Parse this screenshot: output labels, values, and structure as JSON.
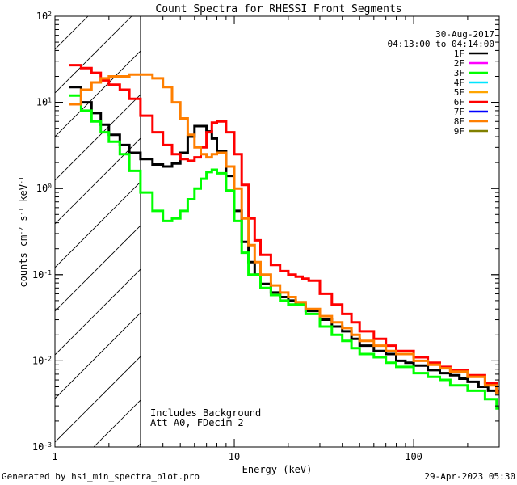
{
  "chart_data": {
    "type": "line",
    "title": "Count Spectra for RHESSI Front Segments",
    "xlabel": "Energy (keV)",
    "ylabel_parts": [
      "counts cm",
      "-2",
      " s",
      "-1",
      " keV",
      "-1"
    ],
    "xscale": "log",
    "yscale": "log",
    "xlim": [
      1,
      300
    ],
    "ylim": [
      0.001,
      100
    ],
    "x_tick_labels": [
      {
        "value": 10,
        "label": "10"
      },
      {
        "value": 100,
        "label": "100"
      }
    ],
    "y_tick_labels": [
      {
        "value": 100,
        "base": "10",
        "exp": "2"
      },
      {
        "value": 10,
        "base": "10",
        "exp": "1"
      },
      {
        "value": 1,
        "base": "10",
        "exp": "0"
      },
      {
        "value": 0.1,
        "base": "10",
        "exp": "-1"
      },
      {
        "value": 0.01,
        "base": "10",
        "exp": "-2"
      },
      {
        "value": 0.001,
        "base": "10",
        "exp": "-3"
      }
    ],
    "date": "30-Aug-2017",
    "time_range": "04:13:00 to 04:14:00",
    "shaded_region": {
      "x_min": 1,
      "x_max": 3,
      "style": "hatched"
    },
    "annotations": [
      "Includes Background",
      "Att A0, FDecim 2"
    ],
    "legend": [
      {
        "label": "1F",
        "color": "#000000"
      },
      {
        "label": "2F",
        "color": "#ff00ff"
      },
      {
        "label": "3F",
        "color": "#00ff00"
      },
      {
        "label": "4F",
        "color": "#00e5ff"
      },
      {
        "label": "5F",
        "color": "#ffa500"
      },
      {
        "label": "6F",
        "color": "#ff0000"
      },
      {
        "label": "7F",
        "color": "#0000ff"
      },
      {
        "label": "8F",
        "color": "#ff7f00"
      },
      {
        "label": "9F",
        "color": "#808000"
      }
    ],
    "series": [
      {
        "name": "1F",
        "color": "#000000",
        "points": [
          [
            1.2,
            15
          ],
          [
            1.4,
            10
          ],
          [
            1.6,
            7.5
          ],
          [
            1.8,
            5.5
          ],
          [
            2,
            4.2
          ],
          [
            2.3,
            3.2
          ],
          [
            2.6,
            2.6
          ],
          [
            3,
            2.2
          ],
          [
            3.5,
            1.9
          ],
          [
            4,
            1.8
          ],
          [
            4.5,
            1.95
          ],
          [
            5,
            2.6
          ],
          [
            5.5,
            4
          ],
          [
            6,
            5.3
          ],
          [
            6.5,
            5.3
          ],
          [
            7,
            4.6
          ],
          [
            7.5,
            3.8
          ],
          [
            8,
            2.7
          ],
          [
            9,
            1.4
          ],
          [
            10,
            0.55
          ],
          [
            11,
            0.24
          ],
          [
            12,
            0.14
          ],
          [
            13,
            0.1
          ],
          [
            14,
            0.078
          ],
          [
            16,
            0.062
          ],
          [
            18,
            0.055
          ],
          [
            20,
            0.05
          ],
          [
            22,
            0.045
          ],
          [
            25,
            0.038
          ],
          [
            30,
            0.03
          ],
          [
            35,
            0.025
          ],
          [
            40,
            0.022
          ],
          [
            45,
            0.018
          ],
          [
            50,
            0.015
          ],
          [
            60,
            0.013
          ],
          [
            70,
            0.012
          ],
          [
            80,
            0.01
          ],
          [
            90,
            0.0095
          ],
          [
            100,
            0.0088
          ],
          [
            120,
            0.0078
          ],
          [
            140,
            0.0072
          ],
          [
            160,
            0.0068
          ],
          [
            180,
            0.0062
          ],
          [
            200,
            0.0057
          ],
          [
            230,
            0.005
          ],
          [
            260,
            0.0045
          ],
          [
            290,
            0.0042
          ]
        ]
      },
      {
        "name": "3F",
        "color": "#00ff00",
        "points": [
          [
            1.2,
            12
          ],
          [
            1.4,
            8
          ],
          [
            1.6,
            6
          ],
          [
            1.8,
            4.5
          ],
          [
            2,
            3.5
          ],
          [
            2.3,
            2.5
          ],
          [
            2.6,
            1.6
          ],
          [
            3,
            0.9
          ],
          [
            3.5,
            0.55
          ],
          [
            4,
            0.42
          ],
          [
            4.5,
            0.45
          ],
          [
            5,
            0.55
          ],
          [
            5.5,
            0.75
          ],
          [
            6,
            1
          ],
          [
            6.5,
            1.3
          ],
          [
            7,
            1.55
          ],
          [
            7.5,
            1.65
          ],
          [
            8,
            1.5
          ],
          [
            9,
            0.95
          ],
          [
            10,
            0.42
          ],
          [
            11,
            0.18
          ],
          [
            12,
            0.1
          ],
          [
            14,
            0.07
          ],
          [
            16,
            0.058
          ],
          [
            18,
            0.05
          ],
          [
            20,
            0.045
          ],
          [
            25,
            0.035
          ],
          [
            30,
            0.025
          ],
          [
            35,
            0.02
          ],
          [
            40,
            0.017
          ],
          [
            45,
            0.014
          ],
          [
            50,
            0.012
          ],
          [
            60,
            0.011
          ],
          [
            70,
            0.0095
          ],
          [
            80,
            0.0085
          ],
          [
            100,
            0.0072
          ],
          [
            120,
            0.0065
          ],
          [
            140,
            0.006
          ],
          [
            160,
            0.0052
          ],
          [
            200,
            0.0045
          ],
          [
            250,
            0.0036
          ],
          [
            290,
            0.0028
          ]
        ]
      },
      {
        "name": "6F",
        "color": "#ff0000",
        "points": [
          [
            1.2,
            27
          ],
          [
            1.4,
            25
          ],
          [
            1.6,
            22
          ],
          [
            1.8,
            18
          ],
          [
            2,
            16
          ],
          [
            2.3,
            14
          ],
          [
            2.6,
            11
          ],
          [
            3,
            7
          ],
          [
            3.5,
            4.5
          ],
          [
            4,
            3.2
          ],
          [
            4.5,
            2.5
          ],
          [
            5,
            2.2
          ],
          [
            5.5,
            2.1
          ],
          [
            6,
            2.3
          ],
          [
            6.5,
            3
          ],
          [
            7,
            4.5
          ],
          [
            7.5,
            5.8
          ],
          [
            8,
            6
          ],
          [
            9,
            4.5
          ],
          [
            10,
            2.5
          ],
          [
            11,
            1.1
          ],
          [
            12,
            0.45
          ],
          [
            13,
            0.25
          ],
          [
            14,
            0.17
          ],
          [
            16,
            0.13
          ],
          [
            18,
            0.11
          ],
          [
            20,
            0.1
          ],
          [
            22,
            0.095
          ],
          [
            24,
            0.09
          ],
          [
            26,
            0.085
          ],
          [
            30,
            0.06
          ],
          [
            35,
            0.045
          ],
          [
            40,
            0.035
          ],
          [
            45,
            0.028
          ],
          [
            50,
            0.022
          ],
          [
            60,
            0.018
          ],
          [
            70,
            0.015
          ],
          [
            80,
            0.013
          ],
          [
            100,
            0.011
          ],
          [
            120,
            0.0095
          ],
          [
            140,
            0.0085
          ],
          [
            160,
            0.0078
          ],
          [
            200,
            0.0068
          ],
          [
            250,
            0.0055
          ],
          [
            290,
            0.0045
          ]
        ]
      },
      {
        "name": "8F",
        "color": "#ff7f00",
        "points": [
          [
            1.2,
            9.5
          ],
          [
            1.4,
            14
          ],
          [
            1.6,
            17
          ],
          [
            1.8,
            19
          ],
          [
            2,
            20
          ],
          [
            2.3,
            20
          ],
          [
            2.6,
            21
          ],
          [
            3,
            21
          ],
          [
            3.5,
            19
          ],
          [
            4,
            15
          ],
          [
            4.5,
            10
          ],
          [
            5,
            6.5
          ],
          [
            5.5,
            4.2
          ],
          [
            6,
            3
          ],
          [
            6.5,
            2.5
          ],
          [
            7,
            2.3
          ],
          [
            7.5,
            2.5
          ],
          [
            8,
            2.6
          ],
          [
            9,
            1.8
          ],
          [
            10,
            1
          ],
          [
            11,
            0.45
          ],
          [
            12,
            0.22
          ],
          [
            13,
            0.14
          ],
          [
            14,
            0.1
          ],
          [
            16,
            0.075
          ],
          [
            18,
            0.062
          ],
          [
            20,
            0.055
          ],
          [
            22,
            0.048
          ],
          [
            25,
            0.04
          ],
          [
            30,
            0.033
          ],
          [
            35,
            0.028
          ],
          [
            40,
            0.024
          ],
          [
            45,
            0.02
          ],
          [
            50,
            0.017
          ],
          [
            60,
            0.015
          ],
          [
            70,
            0.013
          ],
          [
            80,
            0.012
          ],
          [
            100,
            0.01
          ],
          [
            120,
            0.009
          ],
          [
            140,
            0.0082
          ],
          [
            160,
            0.0075
          ],
          [
            200,
            0.0065
          ],
          [
            250,
            0.0052
          ],
          [
            290,
            0.0042
          ]
        ]
      }
    ]
  },
  "footer": {
    "left": "Generated by hsi_min_spectra_plot.pro",
    "right": "29-Apr-2023 05:30"
  }
}
